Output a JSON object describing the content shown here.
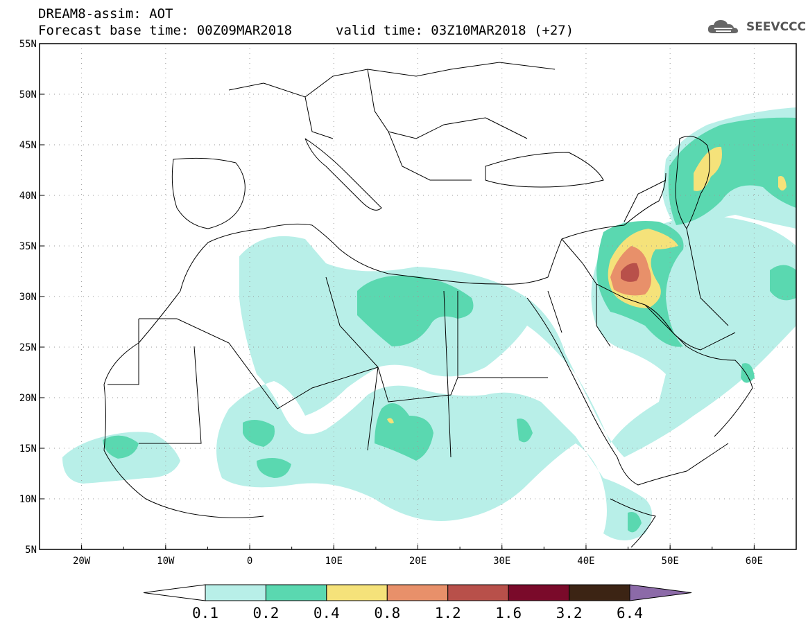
{
  "header": {
    "line1": "DREAM8-assim: AOT",
    "base_time": "Forecast base time: 00Z09MAR2018",
    "valid_time": "valid time: 03Z10MAR2018 (+27)",
    "logo_text": "SEEVCCC",
    "logo_icon": "cloud-icon"
  },
  "axes": {
    "lon_labels": [
      "20W",
      "10W",
      "0",
      "10E",
      "20E",
      "30E",
      "40E",
      "50E",
      "60E"
    ],
    "lat_labels": [
      "55N",
      "50N",
      "45N",
      "40N",
      "35N",
      "30N",
      "25N",
      "20N",
      "15N",
      "10N",
      "5N"
    ]
  },
  "colorbar": {
    "labels": [
      "0.1",
      "0.2",
      "0.4",
      "0.8",
      "1.2",
      "1.6",
      "3.2",
      "6.4"
    ],
    "colors": [
      "#ffffff",
      "#b8efe8",
      "#5ad8b0",
      "#f5e27a",
      "#e8906a",
      "#b8504a",
      "#7a0a2a",
      "#3c2414",
      "#8c6aa8"
    ]
  },
  "field_colors": {
    "c01": "#b8efe8",
    "c02": "#5ad8b0",
    "c04": "#f5e27a",
    "c08": "#e8906a",
    "c12": "#b8504a"
  }
}
